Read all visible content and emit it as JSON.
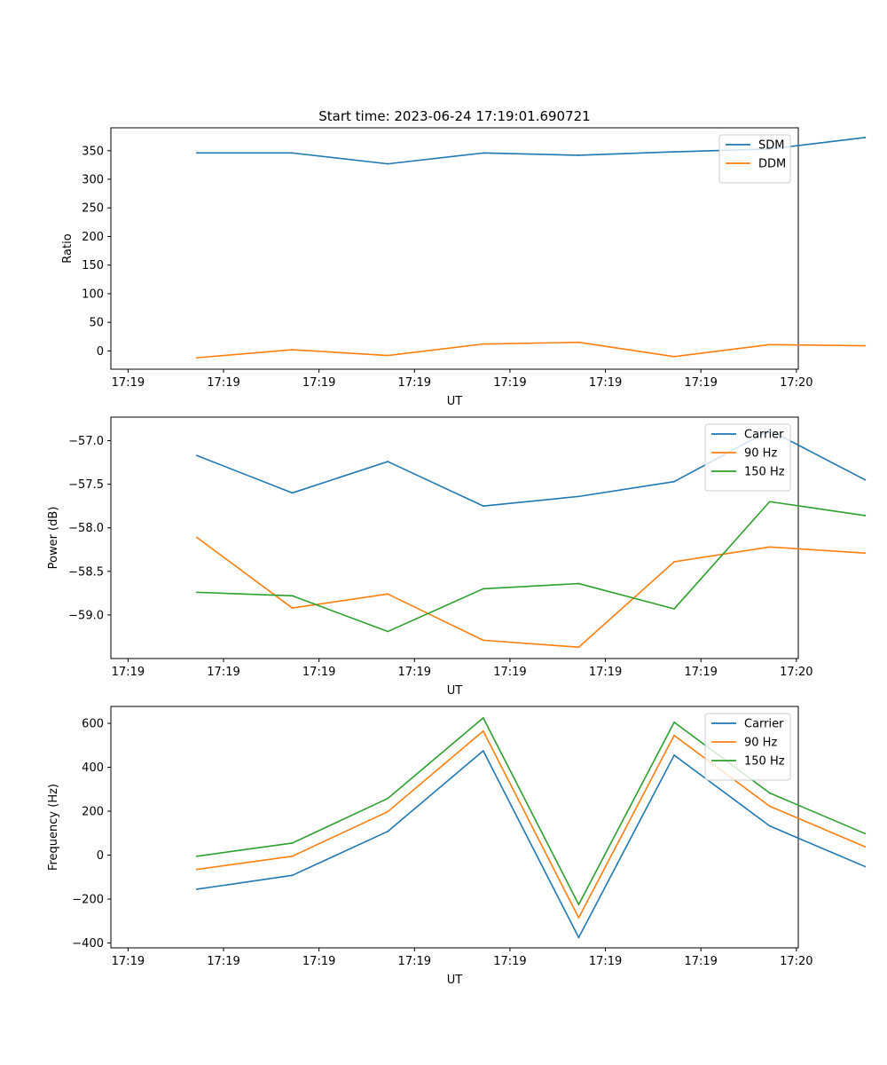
{
  "figure": {
    "title": "Start time: 2023-06-24 17:19:01.690721"
  },
  "chart_data": [
    {
      "type": "line",
      "title": "Start time: 2023-06-24 17:19:01.690721",
      "xlabel": "UT",
      "ylabel": "Ratio",
      "x": [
        1,
        2,
        3,
        4,
        5,
        6,
        7,
        8
      ],
      "x_tick_labels": [
        "17:19",
        "17:19",
        "17:19",
        "17:19",
        "17:19",
        "17:19",
        "17:19",
        "17:20"
      ],
      "x_tick_positions": [
        0.28,
        1.28,
        2.28,
        3.28,
        4.28,
        5.28,
        6.28,
        7.28
      ],
      "xlim": [
        0.1,
        7.3
      ],
      "ylim": [
        -32,
        390
      ],
      "y_ticks": [
        0,
        50,
        100,
        150,
        200,
        250,
        300,
        350
      ],
      "y_tick_labels": [
        "0",
        "50",
        "100",
        "150",
        "200",
        "250",
        "300",
        "350"
      ],
      "legend_position": "top-right",
      "grid": false,
      "series": [
        {
          "name": "SDM",
          "color": "#1f77b4",
          "values": [
            346,
            346,
            327,
            346,
            342,
            348,
            353,
            373
          ]
        },
        {
          "name": "DDM",
          "color": "#ff7f0e",
          "values": [
            -12,
            2,
            -8,
            12,
            15,
            -10,
            11,
            9
          ]
        }
      ]
    },
    {
      "type": "line",
      "title": "",
      "xlabel": "UT",
      "ylabel": "Power (dB)",
      "x": [
        1,
        2,
        3,
        4,
        5,
        6,
        7,
        8
      ],
      "x_tick_labels": [
        "17:19",
        "17:19",
        "17:19",
        "17:19",
        "17:19",
        "17:19",
        "17:19",
        "17:20"
      ],
      "x_tick_positions": [
        0.28,
        1.28,
        2.28,
        3.28,
        4.28,
        5.28,
        6.28,
        7.28
      ],
      "xlim": [
        0.1,
        7.3
      ],
      "ylim": [
        -59.5,
        -56.73
      ],
      "y_ticks": [
        -59.0,
        -58.5,
        -58.0,
        -57.5,
        -57.0
      ],
      "y_tick_labels": [
        "−59.0",
        "−58.5",
        "−58.0",
        "−57.5",
        "−57.0"
      ],
      "legend_position": "top-right",
      "grid": false,
      "series": [
        {
          "name": "Carrier",
          "color": "#1f77b4",
          "values": [
            -57.17,
            -57.6,
            -57.24,
            -57.75,
            -57.64,
            -57.47,
            -56.88,
            -57.45
          ]
        },
        {
          "name": "90 Hz",
          "color": "#ff7f0e",
          "values": [
            -58.11,
            -58.92,
            -58.76,
            -59.29,
            -59.37,
            -58.39,
            -58.22,
            -58.29
          ]
        },
        {
          "name": "150 Hz",
          "color": "#2ca02c",
          "values": [
            -58.74,
            -58.78,
            -59.19,
            -58.7,
            -58.64,
            -58.93,
            -57.7,
            -57.86
          ]
        }
      ]
    },
    {
      "type": "line",
      "title": "",
      "xlabel": "UT",
      "ylabel": "Frequency (Hz)",
      "x": [
        1,
        2,
        3,
        4,
        5,
        6,
        7,
        8
      ],
      "x_tick_labels": [
        "17:19",
        "17:19",
        "17:19",
        "17:19",
        "17:19",
        "17:19",
        "17:19",
        "17:20"
      ],
      "x_tick_positions": [
        0.28,
        1.28,
        2.28,
        3.28,
        4.28,
        5.28,
        6.28,
        7.28
      ],
      "xlim": [
        0.1,
        7.3
      ],
      "ylim": [
        -422,
        677
      ],
      "y_ticks": [
        -400,
        -200,
        0,
        200,
        400,
        600
      ],
      "y_tick_labels": [
        "−400",
        "−200",
        "0",
        "200",
        "400",
        "600"
      ],
      "legend_position": "top-right",
      "grid": false,
      "series": [
        {
          "name": "Carrier",
          "color": "#1f77b4",
          "values": [
            -155,
            -92,
            108,
            475,
            -375,
            455,
            133,
            -52
          ]
        },
        {
          "name": "90 Hz",
          "color": "#ff7f0e",
          "values": [
            -65,
            -5,
            198,
            565,
            -285,
            545,
            223,
            38
          ]
        },
        {
          "name": "150 Hz",
          "color": "#2ca02c",
          "values": [
            -5,
            55,
            258,
            625,
            -225,
            605,
            283,
            98
          ]
        }
      ]
    }
  ]
}
